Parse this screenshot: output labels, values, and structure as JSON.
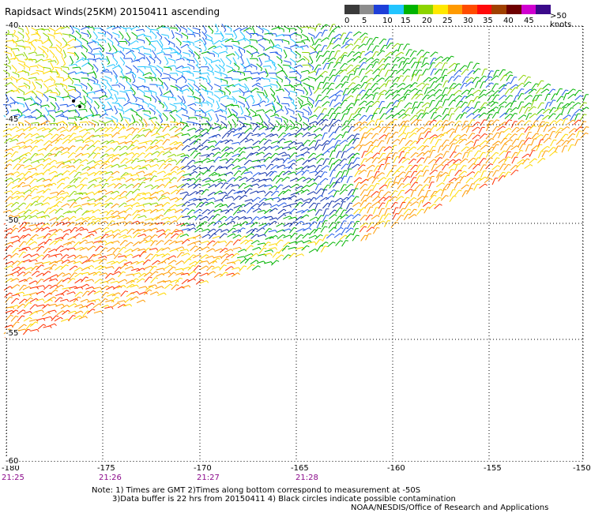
{
  "title": "Rapidsact Winds(25KM) 20150411 ascending",
  "legend": {
    "colors": [
      "#3a3a3a",
      "#8c8c8c",
      "#1e3fd8",
      "#22c5ff",
      "#00b300",
      "#8cd400",
      "#ffe800",
      "#ff9a00",
      "#ff4c00",
      "#ff0a0a",
      "#a04000",
      "#6e0000",
      "#d000d0",
      "#3b0a8a"
    ],
    "labels": [
      "0",
      "5",
      "10",
      "15",
      "20",
      "25",
      "30",
      "35",
      "40",
      "45"
    ],
    "units": ">50 knots"
  },
  "axes": {
    "lon_labels": [
      "-180",
      "-175",
      "-170",
      "-165",
      "-160",
      "-155",
      "-150"
    ],
    "lat_labels": [
      "-40",
      "-45",
      "-50",
      "-55",
      "-60"
    ],
    "time_labels": [
      "21:25",
      "21:26",
      "21:27",
      "21:28"
    ]
  },
  "notes": [
    "Note: 1) Times are GMT 2)Times along bottom correspond to measurement at -50S",
    "3)Data buffer is 22 hrs from 20150411 4) Black circles indicate possible contamination",
    "NOAA/NESDIS/Office of Research and Applications"
  ]
}
